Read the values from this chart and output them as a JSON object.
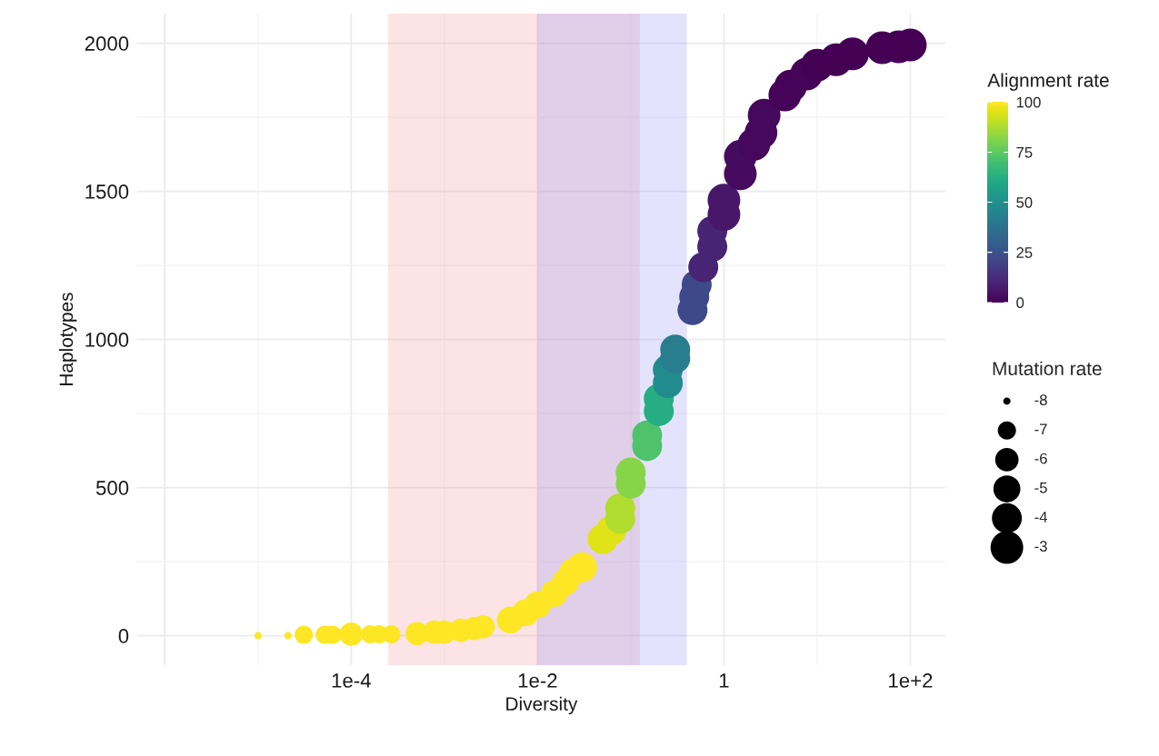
{
  "chart_data": {
    "type": "bubble",
    "xlabel": "Diversity",
    "ylabel": "Haplotypes",
    "clabel": "Alignment rate",
    "legend_title": "Mutation rate",
    "log": "x",
    "grid": true,
    "xlim": [
      5e-07,
      240
    ],
    "xticks": [
      {
        "value": 1e-06,
        "label": null
      },
      {
        "value": 0.0001,
        "label": "1e-4"
      },
      {
        "value": 0.01,
        "label": "1e-2"
      },
      1,
      {
        "value": 100,
        "label": "1e+2"
      }
    ],
    "ylim": [
      -100,
      2100
    ],
    "yticks": [
      0,
      500,
      1000,
      1500,
      2000
    ],
    "clim": [
      0,
      100
    ],
    "cticks": [
      0,
      25,
      50,
      75,
      100
    ],
    "size_legend": [
      {
        "value": 0.05,
        "label": "-8"
      },
      {
        "value": 0.31,
        "label": "-7"
      },
      {
        "value": 0.51,
        "label": "-6"
      },
      {
        "value": 0.68,
        "label": "-5"
      },
      {
        "value": 0.84,
        "label": "-4"
      },
      {
        "value": 1,
        "label": "-3"
      }
    ],
    "bands": [
      {
        "axis": "x",
        "from": 0.00025,
        "to": 0.125,
        "color": "#f38f97"
      },
      {
        "axis": "x",
        "from": 0.01,
        "to": 0.4,
        "color": "#8f8ff7"
      }
    ],
    "series": [
      {
        "x": [
          1e-05,
          2.1e-05,
          3.1e-05,
          5.2e-05,
          6.3e-05,
          0.0001,
          0.00016,
          0.0002,
          0.00027,
          0.00051,
          0.00078,
          0.001,
          0.0015,
          0.0021,
          0.0026,
          0.0051,
          0.0074,
          0.01,
          0.015,
          0.02,
          0.024,
          0.03,
          0.05,
          0.062,
          0.077,
          0.077,
          0.1,
          0.1,
          0.15,
          0.15,
          0.2,
          0.2,
          0.25,
          0.25,
          0.3,
          0.3,
          0.46,
          0.48,
          0.51,
          0.6,
          0.75,
          0.75,
          1,
          1,
          1.5,
          1.5,
          2.1,
          2.5,
          2.7,
          4.5,
          5.2,
          7.7,
          10,
          16,
          24,
          50,
          75,
          100
        ],
        "values": [
          0,
          0,
          3,
          3,
          3,
          5,
          5,
          5,
          5,
          7,
          12,
          12,
          18,
          24,
          30,
          53,
          77,
          104,
          142,
          181,
          216,
          231,
          326,
          356,
          394,
          430,
          513,
          551,
          640,
          676,
          758,
          800,
          853,
          898,
          936,
          966,
          1099,
          1144,
          1185,
          1244,
          1313,
          1366,
          1422,
          1470,
          1559,
          1618,
          1659,
          1698,
          1757,
          1825,
          1855,
          1896,
          1926,
          1944,
          1964,
          1985,
          1988,
          1994
        ],
        "sizes": [
          0.05,
          0.05,
          0.31,
          0.31,
          0.31,
          0.51,
          0.31,
          0.31,
          0.31,
          0.51,
          0.51,
          0.51,
          0.51,
          0.51,
          0.51,
          0.68,
          0.68,
          0.68,
          0.68,
          0.68,
          0.68,
          0.84,
          0.84,
          0.84,
          0.84,
          0.84,
          0.84,
          0.84,
          0.84,
          0.84,
          0.84,
          0.84,
          0.84,
          0.84,
          0.84,
          0.84,
          0.84,
          0.84,
          0.84,
          0.84,
          0.84,
          0.84,
          1,
          1,
          1,
          1,
          1,
          1,
          1,
          1,
          1,
          1,
          1,
          1,
          1,
          1,
          1,
          1
        ],
        "cvalues": [
          100,
          100,
          100,
          100,
          100,
          100,
          100,
          100,
          100,
          100,
          100,
          100,
          100,
          100,
          100,
          100,
          100,
          100,
          100,
          100,
          100,
          100,
          95,
          95,
          88,
          88,
          82,
          82,
          72,
          72,
          62,
          62,
          48,
          48,
          42,
          42,
          22,
          22,
          22,
          10,
          10,
          10,
          6,
          6,
          3,
          3,
          2,
          2,
          2,
          1,
          1,
          1,
          0,
          0,
          0,
          0,
          0,
          0
        ]
      }
    ]
  }
}
